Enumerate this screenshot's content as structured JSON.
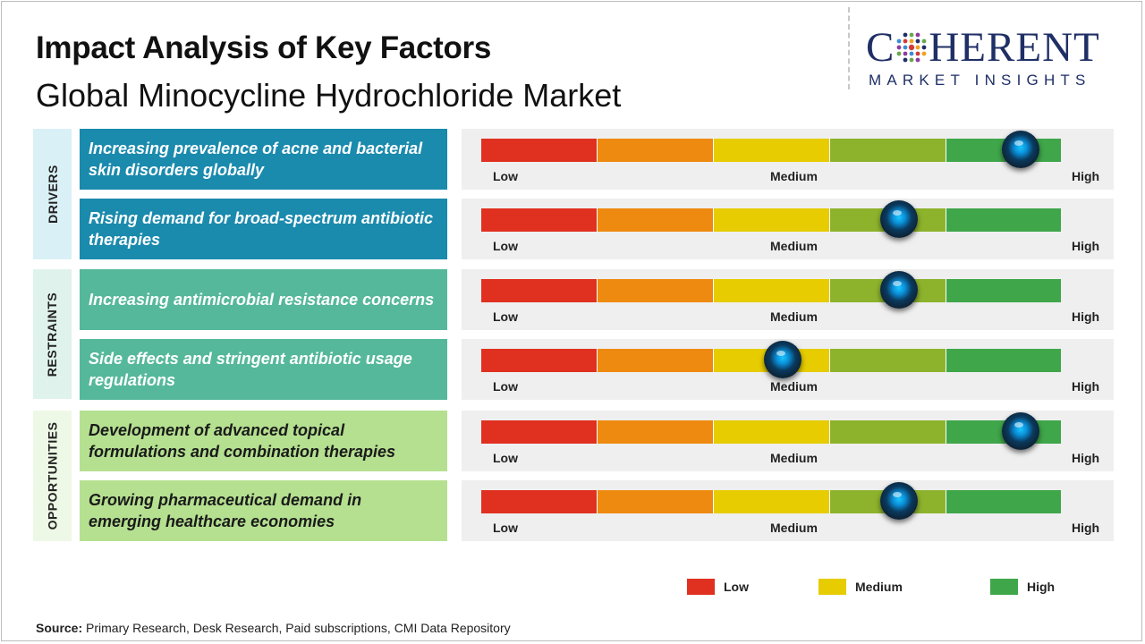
{
  "header": {
    "title": "Impact Analysis of Key Factors",
    "subtitle": "Global Minocycline Hydrochloride Market"
  },
  "logo": {
    "main_left": "C",
    "main_right": "HERENT",
    "sub": "MARKET INSIGHTS"
  },
  "colors": {
    "low": "#e03020",
    "orange": "#ee8a10",
    "medium": "#e6cc00",
    "lightgreen": "#8db32c",
    "high": "#3fa64a",
    "drivers": "#1a8aad",
    "restraints": "#55b89a",
    "opportunities": "#b5e090",
    "drivers_label_bg": "#daf0f7",
    "restraints_label_bg": "#dff2ec",
    "opportunities_label_bg": "#eef8e6"
  },
  "chart_data": {
    "type": "gauge",
    "scale": [
      "Low",
      "Medium",
      "High"
    ],
    "categories": [
      {
        "name": "DRIVERS",
        "factors": [
          {
            "text": "Increasing prevalence of acne and bacterial skin disorders globally",
            "impact": 0.93
          },
          {
            "text": "Rising demand for broad-spectrum antibiotic therapies",
            "impact": 0.72
          }
        ]
      },
      {
        "name": "RESTRAINTS",
        "factors": [
          {
            "text": "Increasing antimicrobial resistance concerns",
            "impact": 0.72
          },
          {
            "text": "Side effects and stringent antibiotic usage regulations",
            "impact": 0.52
          }
        ]
      },
      {
        "name": "OPPORTUNITIES",
        "factors": [
          {
            "text": "Development of advanced topical formulations and combination therapies",
            "impact": 0.93
          },
          {
            "text": "Growing pharmaceutical demand in emerging healthcare economies",
            "impact": 0.72
          }
        ]
      }
    ],
    "legend": [
      {
        "label": "Low",
        "color": "#e03020"
      },
      {
        "label": "Medium",
        "color": "#e6cc00"
      },
      {
        "label": "High",
        "color": "#3fa64a"
      }
    ]
  },
  "gauge_labels": {
    "low": "Low",
    "medium": "Medium",
    "high": "High"
  },
  "source": {
    "label": "Source:",
    "text": " Primary Research, Desk Research, Paid subscriptions, CMI Data Repository"
  }
}
